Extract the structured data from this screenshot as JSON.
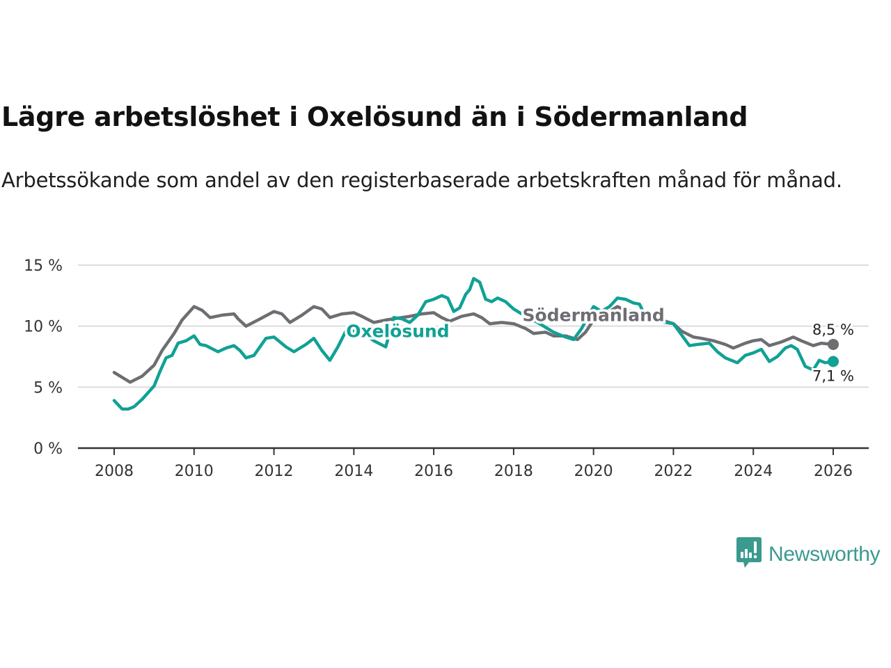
{
  "header": {
    "title": "Lägre arbetslöshet i Oxelösund än i Södermanland",
    "subtitle": "Arbetssökande som andel av den registerbaserade arbetskraften månad för månad."
  },
  "branding": {
    "logo_icon": "bar-chart-speech-bubble-icon",
    "logo_text": "Newsworthy",
    "logo_color": "#3a9a8e"
  },
  "chart_data": {
    "type": "line",
    "title": "Lägre arbetslöshet i Oxelösund än i Södermanland",
    "subtitle": "Arbetssökande som andel av den registerbaserade arbetskraften månad för månad.",
    "xlabel": "",
    "ylabel": "",
    "xlim": [
      2007.1,
      2026.9
    ],
    "ylim": [
      0,
      15
    ],
    "grid": true,
    "legend": "inline-labels",
    "x_ticks": [
      2008,
      2010,
      2012,
      2014,
      2016,
      2018,
      2020,
      2022,
      2024,
      2026
    ],
    "x_tick_labels": [
      "2008",
      "2010",
      "2012",
      "2014",
      "2016",
      "2018",
      "2020",
      "2022",
      "2024",
      "2026"
    ],
    "y_ticks": [
      0,
      5,
      10,
      15
    ],
    "y_tick_labels": [
      "0 %",
      "5 %",
      "10 %",
      "15 %"
    ],
    "series": [
      {
        "name": "Södermanland",
        "label": "Södermanland",
        "color": "#6e6d72",
        "end_label": "8,5 %",
        "end_value": 8.5,
        "x": [
          2008.0,
          2008.2,
          2008.4,
          2008.7,
          2009.0,
          2009.2,
          2009.5,
          2009.7,
          2010.0,
          2010.2,
          2010.4,
          2010.7,
          2011.0,
          2011.1,
          2011.3,
          2011.6,
          2012.0,
          2012.2,
          2012.4,
          2012.7,
          2013.0,
          2013.2,
          2013.4,
          2013.7,
          2014.0,
          2014.2,
          2014.5,
          2014.8,
          2015.0,
          2015.4,
          2015.7,
          2016.0,
          2016.2,
          2016.4,
          2016.7,
          2017.0,
          2017.2,
          2017.4,
          2017.7,
          2018.0,
          2018.3,
          2018.5,
          2018.8,
          2019.0,
          2019.3,
          2019.6,
          2019.8,
          2020.0,
          2020.3,
          2020.6,
          2020.8,
          2021.0,
          2021.3,
          2021.6,
          2022.0,
          2022.2,
          2022.5,
          2022.7,
          2023.0,
          2023.3,
          2023.5,
          2023.8,
          2024.0,
          2024.2,
          2024.4,
          2024.7,
          2025.0,
          2025.2,
          2025.5,
          2025.7,
          2026.0
        ],
        "values": [
          6.2,
          5.8,
          5.4,
          5.9,
          6.8,
          8.0,
          9.4,
          10.5,
          11.6,
          11.3,
          10.7,
          10.9,
          11.0,
          10.6,
          10.0,
          10.5,
          11.2,
          11.0,
          10.3,
          10.9,
          11.6,
          11.4,
          10.7,
          11.0,
          11.1,
          10.8,
          10.3,
          10.5,
          10.6,
          10.8,
          11.0,
          11.1,
          10.7,
          10.4,
          10.8,
          11.0,
          10.7,
          10.2,
          10.3,
          10.2,
          9.8,
          9.4,
          9.5,
          9.2,
          9.2,
          8.9,
          9.5,
          10.5,
          11.0,
          11.6,
          11.3,
          11.2,
          10.8,
          10.6,
          10.2,
          9.6,
          9.1,
          9.0,
          8.8,
          8.5,
          8.2,
          8.6,
          8.8,
          8.9,
          8.4,
          8.7,
          9.1,
          8.8,
          8.4,
          8.6,
          8.5
        ]
      },
      {
        "name": "Oxelösund",
        "label": "Oxelösund",
        "color": "#10a195",
        "end_label": "7,1 %",
        "end_value": 7.1,
        "x": [
          2008.0,
          2008.2,
          2008.35,
          2008.5,
          2008.7,
          2009.0,
          2009.15,
          2009.3,
          2009.45,
          2009.6,
          2009.8,
          2010.0,
          2010.15,
          2010.3,
          2010.6,
          2010.8,
          2011.0,
          2011.15,
          2011.3,
          2011.5,
          2011.8,
          2012.0,
          2012.3,
          2012.5,
          2012.8,
          2013.0,
          2013.2,
          2013.4,
          2013.6,
          2013.8,
          2014.0,
          2014.3,
          2014.5,
          2014.8,
          2015.0,
          2015.2,
          2015.4,
          2015.6,
          2015.8,
          2016.0,
          2016.2,
          2016.35,
          2016.5,
          2016.65,
          2016.8,
          2016.9,
          2017.0,
          2017.15,
          2017.3,
          2017.45,
          2017.6,
          2017.8,
          2018.0,
          2018.3,
          2018.6,
          2019.0,
          2019.3,
          2019.5,
          2019.7,
          2020.0,
          2020.2,
          2020.4,
          2020.6,
          2020.8,
          2021.0,
          2021.15,
          2021.3,
          2021.6,
          2022.0,
          2022.2,
          2022.4,
          2022.6,
          2022.9,
          2023.1,
          2023.3,
          2023.6,
          2023.8,
          2024.0,
          2024.2,
          2024.4,
          2024.6,
          2024.8,
          2024.95,
          2025.1,
          2025.3,
          2025.5,
          2025.65,
          2025.8,
          2026.0
        ],
        "values": [
          3.9,
          3.2,
          3.2,
          3.4,
          4.0,
          5.1,
          6.3,
          7.4,
          7.6,
          8.6,
          8.8,
          9.2,
          8.5,
          8.4,
          7.9,
          8.2,
          8.4,
          8.0,
          7.4,
          7.6,
          9.0,
          9.1,
          8.3,
          7.9,
          8.5,
          9.0,
          8.0,
          7.2,
          8.3,
          9.6,
          9.6,
          9.3,
          8.8,
          8.3,
          10.7,
          10.6,
          10.3,
          10.9,
          12.0,
          12.2,
          12.5,
          12.3,
          11.2,
          11.5,
          12.6,
          13.0,
          13.9,
          13.6,
          12.2,
          12.0,
          12.3,
          12.0,
          11.4,
          10.8,
          10.3,
          9.5,
          9.1,
          8.9,
          9.8,
          11.6,
          11.2,
          11.6,
          12.3,
          12.2,
          11.9,
          11.8,
          10.8,
          10.4,
          10.2,
          9.3,
          8.4,
          8.5,
          8.6,
          7.9,
          7.4,
          7.0,
          7.6,
          7.8,
          8.1,
          7.1,
          7.5,
          8.2,
          8.4,
          8.1,
          6.7,
          6.4,
          7.2,
          7.0,
          7.1
        ]
      }
    ],
    "annotations": [
      {
        "text": "Oxelösund",
        "series": "Oxelösund",
        "x": 2015.1,
        "y": 9.1
      },
      {
        "text": "Södermanland",
        "series": "Södermanland",
        "x": 2020.0,
        "y": 10.4
      },
      {
        "text": "8,5 %",
        "series": "Södermanland",
        "x": 2026.0,
        "y": 8.5
      },
      {
        "text": "7,1 %",
        "series": "Oxelösund",
        "x": 2026.0,
        "y": 7.1
      }
    ]
  }
}
